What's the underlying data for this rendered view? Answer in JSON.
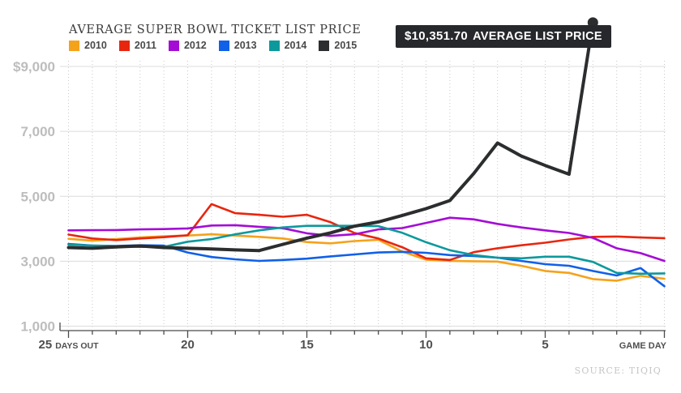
{
  "title": "AVERAGE SUPER BOWL TICKET LIST PRICE",
  "callout": {
    "price": "$10,351.70",
    "label": "AVERAGE LIST PRICE"
  },
  "source": "SOURCE: TIQIQ",
  "colors": {
    "grid_solid": "#dcdcdc",
    "grid_dotted": "#c9c9c9",
    "axis": "#4a4a4a",
    "y_tick_text": "#bdbdbd",
    "x_tick_text": "#4f4f4f",
    "callout_bg": "#26282b"
  },
  "chart_data": {
    "type": "line",
    "title": "AVERAGE SUPER BOWL TICKET LIST PRICE",
    "xlabel": "Days before game (25 DAYS OUT to GAME DAY)",
    "ylabel": "Average list price (USD)",
    "ylim": [
      1000,
      10500
    ],
    "grid": {
      "horizontal": "solid",
      "vertical": "dotted, one per day"
    },
    "legend_position": "top-left",
    "annotation": "$10,351.70 AVERAGE LIST PRICE (end of 2015 line, 3 days out)",
    "days_out": [
      25,
      24,
      23,
      22,
      21,
      20,
      19,
      18,
      17,
      16,
      15,
      14,
      13,
      12,
      11,
      10,
      9,
      8,
      7,
      6,
      5,
      4,
      3,
      2,
      1,
      0
    ],
    "y_ticks": [
      {
        "label": "$9,000",
        "value": 9000
      },
      {
        "label": "7,000",
        "value": 7000
      },
      {
        "label": "5,000",
        "value": 5000
      },
      {
        "label": "3,000",
        "value": 3000
      },
      {
        "label": "1,000",
        "value": 1000
      }
    ],
    "x_ticks": [
      {
        "label": "25",
        "suffix": "DAYS OUT",
        "day": 25
      },
      {
        "label": "20",
        "day": 20
      },
      {
        "label": "15",
        "day": 15
      },
      {
        "label": "10",
        "day": 10
      },
      {
        "label": "5",
        "day": 5
      },
      {
        "label": "GAME DAY",
        "day": 0,
        "end": true
      }
    ],
    "series": [
      {
        "name": "2010",
        "color": "#f5a21b",
        "values": [
          3690,
          3630,
          3680,
          3730,
          3770,
          3790,
          3830,
          3790,
          3750,
          3700,
          3590,
          3550,
          3620,
          3660,
          3300,
          3050,
          3010,
          3000,
          2990,
          2860,
          2700,
          2640,
          2450,
          2400,
          2550,
          2460
        ]
      },
      {
        "name": "2011",
        "color": "#e8260f",
        "values": [
          3820,
          3700,
          3650,
          3700,
          3740,
          3800,
          4760,
          4480,
          4430,
          4370,
          4430,
          4200,
          3870,
          3700,
          3430,
          3090,
          3040,
          3280,
          3400,
          3490,
          3570,
          3670,
          3750,
          3760,
          3730,
          3710
        ]
      },
      {
        "name": "2012",
        "color": "#a40cd5",
        "values": [
          3950,
          3955,
          3960,
          3980,
          3990,
          4010,
          4100,
          4110,
          4060,
          4015,
          3860,
          3780,
          3830,
          3980,
          4020,
          4180,
          4340,
          4290,
          4150,
          4040,
          3950,
          3870,
          3720,
          3400,
          3250,
          3010
        ]
      },
      {
        "name": "2013",
        "color": "#1060e8",
        "values": [
          3530,
          3480,
          3470,
          3490,
          3480,
          3270,
          3130,
          3060,
          3010,
          3040,
          3080,
          3150,
          3210,
          3270,
          3290,
          3260,
          3190,
          3160,
          3110,
          3010,
          2910,
          2860,
          2700,
          2560,
          2790,
          2230
        ]
      },
      {
        "name": "2014",
        "color": "#0c999c",
        "values": [
          3510,
          3480,
          3460,
          3440,
          3440,
          3600,
          3680,
          3830,
          3950,
          4040,
          4090,
          4090,
          4090,
          4080,
          3875,
          3585,
          3340,
          3190,
          3110,
          3090,
          3140,
          3140,
          2980,
          2640,
          2615,
          2625
        ]
      },
      {
        "name": "2015",
        "color": "#2b2d2e",
        "width": 4,
        "end_dot": true,
        "values": [
          3420,
          3400,
          3440,
          3470,
          3420,
          3400,
          3380,
          3350,
          3330,
          3520,
          3710,
          3875,
          4080,
          4210,
          4410,
          4620,
          4870,
          5700,
          6640,
          6240,
          5950,
          5680,
          10351.7
        ]
      }
    ]
  }
}
